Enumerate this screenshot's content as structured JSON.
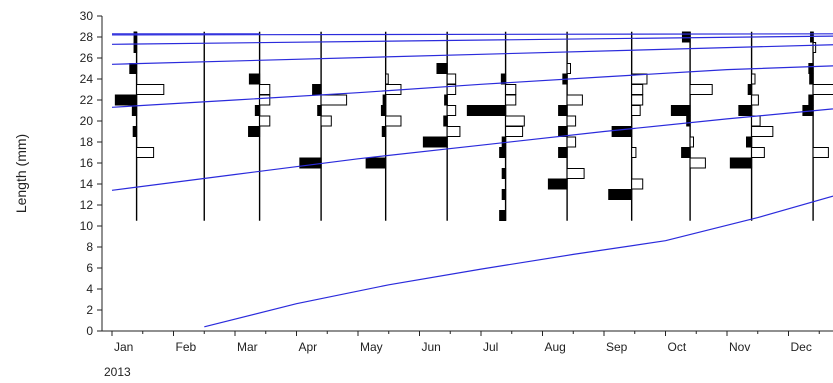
{
  "chart_data": {
    "type": "length-frequency-histogram",
    "title": "",
    "ylabel": "Length (mm)",
    "xlabel": "",
    "year_label": "2013",
    "ylim": [
      0,
      30
    ],
    "y_ticks": [
      0,
      2,
      4,
      6,
      8,
      10,
      12,
      14,
      16,
      18,
      20,
      22,
      24,
      26,
      28,
      30
    ],
    "months": [
      "Jan",
      "Feb",
      "Mar",
      "Apr",
      "May",
      "Jun",
      "Jul",
      "Aug",
      "Sep",
      "Oct",
      "Nov",
      "Dec"
    ],
    "sample_range": [
      10.5,
      28.5
    ],
    "samples": [
      {
        "month_pos": 0.4,
        "bins": [
          {
            "len": 28.0,
            "freq": 0.3,
            "fill": "black"
          },
          {
            "len": 27.0,
            "freq": 0.3,
            "fill": "black"
          },
          {
            "len": 25.0,
            "freq": 0.8,
            "fill": "black"
          },
          {
            "len": 23.0,
            "freq": 3.2,
            "fill": "white"
          },
          {
            "len": 22.0,
            "freq": 2.5,
            "fill": "black"
          },
          {
            "len": 21.0,
            "freq": 0.5,
            "fill": "black"
          },
          {
            "len": 19.0,
            "freq": 0.4,
            "fill": "black"
          },
          {
            "len": 17.0,
            "freq": 2.0,
            "fill": "white"
          }
        ]
      },
      {
        "month_pos": 1.5,
        "bins": []
      },
      {
        "month_pos": 2.4,
        "bins": [
          {
            "len": 24.0,
            "freq": 1.2,
            "fill": "black"
          },
          {
            "len": 23.0,
            "freq": 1.2,
            "fill": "white"
          },
          {
            "len": 22.0,
            "freq": 1.2,
            "fill": "white"
          },
          {
            "len": 21.0,
            "freq": 0.5,
            "fill": "black"
          },
          {
            "len": 20.0,
            "freq": 1.2,
            "fill": "white"
          },
          {
            "len": 19.0,
            "freq": 1.3,
            "fill": "black"
          }
        ]
      },
      {
        "month_pos": 3.4,
        "bins": [
          {
            "len": 23.0,
            "freq": 1.0,
            "fill": "black"
          },
          {
            "len": 22.0,
            "freq": 3.0,
            "fill": "white"
          },
          {
            "len": 21.0,
            "freq": 0.4,
            "fill": "black"
          },
          {
            "len": 20.0,
            "freq": 1.2,
            "fill": "white"
          },
          {
            "len": 16.0,
            "freq": 2.5,
            "fill": "black"
          }
        ]
      },
      {
        "month_pos": 4.45,
        "bins": [
          {
            "len": 24.0,
            "freq": 0.3,
            "fill": "white"
          },
          {
            "len": 23.0,
            "freq": 1.8,
            "fill": "white"
          },
          {
            "len": 22.0,
            "freq": 0.3,
            "fill": "black"
          },
          {
            "len": 21.0,
            "freq": 0.5,
            "fill": "black"
          },
          {
            "len": 20.0,
            "freq": 1.8,
            "fill": "white"
          },
          {
            "len": 19.0,
            "freq": 0.4,
            "fill": "black"
          },
          {
            "len": 16.0,
            "freq": 2.3,
            "fill": "black"
          }
        ]
      },
      {
        "month_pos": 5.45,
        "bins": [
          {
            "len": 25.0,
            "freq": 1.2,
            "fill": "black"
          },
          {
            "len": 24.0,
            "freq": 1.0,
            "fill": "white"
          },
          {
            "len": 23.0,
            "freq": 1.0,
            "fill": "white"
          },
          {
            "len": 22.0,
            "freq": 0.3,
            "fill": "black"
          },
          {
            "len": 21.0,
            "freq": 1.0,
            "fill": "white"
          },
          {
            "len": 20.0,
            "freq": 0.4,
            "fill": "black"
          },
          {
            "len": 19.0,
            "freq": 1.5,
            "fill": "white"
          },
          {
            "len": 18.0,
            "freq": 2.8,
            "fill": "black"
          }
        ]
      },
      {
        "month_pos": 6.4,
        "bins": [
          {
            "len": 24.0,
            "freq": 0.5,
            "fill": "black"
          },
          {
            "len": 23.0,
            "freq": 1.2,
            "fill": "white"
          },
          {
            "len": 22.0,
            "freq": 1.2,
            "fill": "white"
          },
          {
            "len": 21.0,
            "freq": 4.5,
            "fill": "black"
          },
          {
            "len": 20.0,
            "freq": 2.2,
            "fill": "white"
          },
          {
            "len": 19.0,
            "freq": 2.0,
            "fill": "white"
          },
          {
            "len": 18.0,
            "freq": 0.4,
            "fill": "black"
          },
          {
            "len": 17.0,
            "freq": 0.7,
            "fill": "black"
          },
          {
            "len": 15.0,
            "freq": 0.4,
            "fill": "black"
          },
          {
            "len": 13.0,
            "freq": 0.4,
            "fill": "black"
          },
          {
            "len": 11.0,
            "freq": 0.7,
            "fill": "black"
          }
        ]
      },
      {
        "month_pos": 7.4,
        "bins": [
          {
            "len": 25.0,
            "freq": 0.4,
            "fill": "white"
          },
          {
            "len": 24.0,
            "freq": 0.5,
            "fill": "black"
          },
          {
            "len": 22.0,
            "freq": 1.8,
            "fill": "white"
          },
          {
            "len": 21.0,
            "freq": 1.0,
            "fill": "black"
          },
          {
            "len": 20.0,
            "freq": 1.0,
            "fill": "white"
          },
          {
            "len": 19.0,
            "freq": 1.0,
            "fill": "black"
          },
          {
            "len": 18.0,
            "freq": 1.0,
            "fill": "white"
          },
          {
            "len": 17.0,
            "freq": 1.0,
            "fill": "black"
          },
          {
            "len": 15.0,
            "freq": 2.0,
            "fill": "white"
          },
          {
            "len": 14.0,
            "freq": 2.2,
            "fill": "black"
          }
        ]
      },
      {
        "month_pos": 8.45,
        "bins": [
          {
            "len": 24.0,
            "freq": 1.8,
            "fill": "white"
          },
          {
            "len": 23.0,
            "freq": 1.3,
            "fill": "white"
          },
          {
            "len": 22.0,
            "freq": 1.3,
            "fill": "white"
          },
          {
            "len": 21.0,
            "freq": 1.0,
            "fill": "white"
          },
          {
            "len": 19.0,
            "freq": 2.3,
            "fill": "black"
          },
          {
            "len": 17.0,
            "freq": 0.5,
            "fill": "white"
          },
          {
            "len": 14.0,
            "freq": 1.3,
            "fill": "white"
          },
          {
            "len": 13.0,
            "freq": 2.7,
            "fill": "black"
          }
        ]
      },
      {
        "month_pos": 9.4,
        "bins": [
          {
            "len": 28.0,
            "freq": 0.9,
            "fill": "black"
          },
          {
            "len": 23.0,
            "freq": 2.6,
            "fill": "white"
          },
          {
            "len": 21.0,
            "freq": 2.2,
            "fill": "black"
          },
          {
            "len": 20.0,
            "freq": 0.4,
            "fill": "black"
          },
          {
            "len": 18.0,
            "freq": 0.4,
            "fill": "white"
          },
          {
            "len": 17.0,
            "freq": 1.0,
            "fill": "black"
          },
          {
            "len": 16.0,
            "freq": 1.8,
            "fill": "white"
          }
        ]
      },
      {
        "month_pos": 10.4,
        "bins": [
          {
            "len": 24.0,
            "freq": 0.4,
            "fill": "white"
          },
          {
            "len": 23.0,
            "freq": 0.4,
            "fill": "black"
          },
          {
            "len": 22.0,
            "freq": 0.8,
            "fill": "white"
          },
          {
            "len": 21.0,
            "freq": 1.5,
            "fill": "black"
          },
          {
            "len": 20.0,
            "freq": 1.0,
            "fill": "white"
          },
          {
            "len": 19.0,
            "freq": 2.5,
            "fill": "white"
          },
          {
            "len": 18.0,
            "freq": 0.6,
            "fill": "black"
          },
          {
            "len": 17.0,
            "freq": 1.5,
            "fill": "white"
          },
          {
            "len": 16.0,
            "freq": 2.5,
            "fill": "black"
          }
        ]
      },
      {
        "month_pos": 11.4,
        "bins": [
          {
            "len": 28.0,
            "freq": 0.3,
            "fill": "black"
          },
          {
            "len": 27.0,
            "freq": 0.3,
            "fill": "white"
          },
          {
            "len": 25.0,
            "freq": 0.5,
            "fill": "black"
          },
          {
            "len": 24.0,
            "freq": 0.4,
            "fill": "black"
          },
          {
            "len": 23.0,
            "freq": 2.8,
            "fill": "white"
          },
          {
            "len": 22.0,
            "freq": 0.5,
            "fill": "black"
          },
          {
            "len": 21.0,
            "freq": 1.2,
            "fill": "black"
          },
          {
            "len": 17.0,
            "freq": 1.8,
            "fill": "white"
          }
        ]
      }
    ],
    "growth_curves": [
      {
        "points": [
          [
            0.0,
            28.3
          ],
          [
            2.4,
            28.3
          ]
        ]
      },
      {
        "points": [
          [
            0.0,
            28.2
          ],
          [
            12.0,
            28.3
          ]
        ]
      },
      {
        "points": [
          [
            0.0,
            27.3
          ],
          [
            12.0,
            28.1
          ]
        ]
      },
      {
        "points": [
          [
            0.0,
            25.4
          ],
          [
            12.0,
            27.3
          ]
        ]
      },
      {
        "points": [
          [
            0.0,
            21.3
          ],
          [
            2.0,
            22.0
          ],
          [
            4.0,
            22.7
          ],
          [
            6.0,
            23.5
          ],
          [
            8.0,
            24.2
          ],
          [
            10.0,
            24.9
          ],
          [
            12.0,
            25.3
          ]
        ]
      },
      {
        "points": [
          [
            0.0,
            13.4
          ],
          [
            2.0,
            14.9
          ],
          [
            4.0,
            16.4
          ],
          [
            6.0,
            17.7
          ],
          [
            8.0,
            19.0
          ],
          [
            10.0,
            20.2
          ],
          [
            12.0,
            21.3
          ]
        ]
      },
      {
        "points": [
          [
            1.5,
            0.4
          ],
          [
            3.0,
            2.6
          ],
          [
            4.5,
            4.4
          ],
          [
            6.0,
            5.9
          ],
          [
            7.5,
            7.3
          ],
          [
            9.0,
            8.6
          ],
          [
            10.5,
            10.8
          ],
          [
            12.0,
            13.3
          ]
        ]
      }
    ],
    "colors": {
      "curve": "#2b2bdc",
      "axis": "#222222",
      "bar_black": "#000000",
      "bar_white": "#ffffff"
    }
  }
}
